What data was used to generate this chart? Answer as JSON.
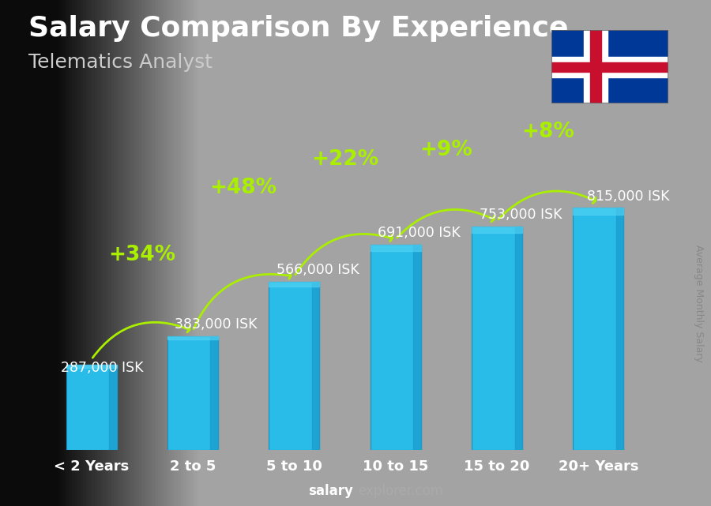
{
  "title": "Salary Comparison By Experience",
  "subtitle": "Telematics Analyst",
  "categories": [
    "< 2 Years",
    "2 to 5",
    "5 to 10",
    "10 to 15",
    "15 to 20",
    "20+ Years"
  ],
  "values": [
    287000,
    383000,
    566000,
    691000,
    753000,
    815000
  ],
  "value_labels": [
    "287,000 ISK",
    "383,000 ISK",
    "566,000 ISK",
    "691,000 ISK",
    "753,000 ISK",
    "815,000 ISK"
  ],
  "pct_changes": [
    "+34%",
    "+48%",
    "+22%",
    "+9%",
    "+8%"
  ],
  "bar_color": "#29bce8",
  "bar_color2": "#1aa3d0",
  "pct_color": "#aaee00",
  "value_label_color": "#ffffff",
  "title_color": "#ffffff",
  "subtitle_color": "#cccccc",
  "bg_color": "#1c1c1c",
  "ylabel_text": "Average Monthly Salary",
  "footer_bold": "salary",
  "footer_normal": "explorer.com",
  "ylim_max": 1020000,
  "title_fontsize": 26,
  "subtitle_fontsize": 18,
  "pct_fontsize": 19,
  "value_fontsize": 12.5,
  "xtick_fontsize": 13,
  "ylabel_fontsize": 9,
  "footer_fontsize": 12,
  "arrow_color": "#aaee00",
  "arrow_lw": 2.0,
  "arc_rads": [
    -0.4,
    -0.4,
    -0.38,
    -0.38,
    -0.38
  ],
  "pct_offsets_x": [
    0,
    0,
    0,
    0,
    0
  ],
  "pct_offsets_y": [
    80000,
    80000,
    80000,
    80000,
    80000
  ]
}
